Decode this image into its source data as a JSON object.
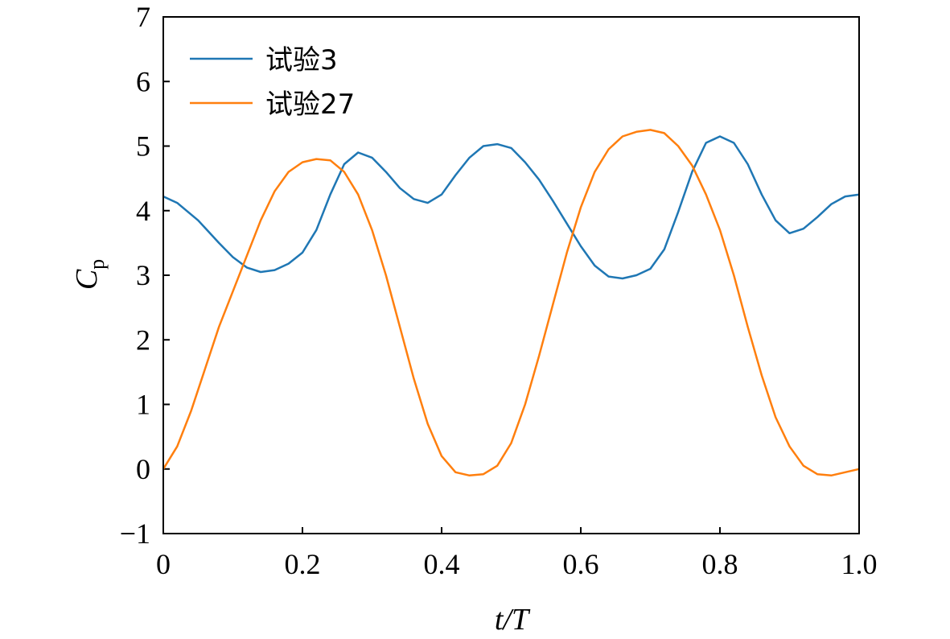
{
  "chart_data": {
    "type": "line",
    "xlabel": "t/T",
    "ylabel": "Cp",
    "ylabel_main": "C",
    "ylabel_sub": "p",
    "xlim": [
      0,
      1
    ],
    "ylim": [
      -1,
      7
    ],
    "xticks": [
      0,
      0.2,
      0.4,
      0.6,
      0.8,
      1.0
    ],
    "xtick_labels": [
      "0",
      "0.2",
      "0.4",
      "0.6",
      "0.8",
      "1.0"
    ],
    "yticks": [
      -1,
      0,
      1,
      2,
      3,
      4,
      5,
      6,
      7
    ],
    "ytick_labels": [
      "−1",
      "0",
      "1",
      "2",
      "3",
      "4",
      "5",
      "6",
      "7"
    ],
    "grid": false,
    "legend_position": "top-left",
    "series": [
      {
        "name": "试验3",
        "color": "#1f77b4",
        "x": [
          0,
          0.02,
          0.05,
          0.08,
          0.1,
          0.12,
          0.14,
          0.16,
          0.18,
          0.2,
          0.22,
          0.24,
          0.26,
          0.28,
          0.3,
          0.32,
          0.34,
          0.36,
          0.38,
          0.4,
          0.42,
          0.44,
          0.46,
          0.48,
          0.5,
          0.52,
          0.54,
          0.56,
          0.58,
          0.6,
          0.62,
          0.64,
          0.66,
          0.68,
          0.7,
          0.72,
          0.74,
          0.76,
          0.78,
          0.8,
          0.82,
          0.84,
          0.86,
          0.88,
          0.9,
          0.92,
          0.94,
          0.96,
          0.98,
          1.0
        ],
        "y": [
          4.22,
          4.12,
          3.85,
          3.5,
          3.28,
          3.12,
          3.05,
          3.08,
          3.18,
          3.35,
          3.7,
          4.25,
          4.72,
          4.9,
          4.82,
          4.6,
          4.35,
          4.18,
          4.12,
          4.25,
          4.55,
          4.82,
          5.0,
          5.03,
          4.97,
          4.75,
          4.48,
          4.15,
          3.8,
          3.45,
          3.15,
          2.98,
          2.95,
          3.0,
          3.1,
          3.4,
          3.98,
          4.6,
          5.05,
          5.15,
          5.05,
          4.72,
          4.25,
          3.85,
          3.65,
          3.72,
          3.9,
          4.1,
          4.22,
          4.25
        ]
      },
      {
        "name": "试验27",
        "color": "#ff7f0e",
        "x": [
          0,
          0.02,
          0.04,
          0.06,
          0.08,
          0.1,
          0.12,
          0.14,
          0.16,
          0.18,
          0.2,
          0.22,
          0.24,
          0.26,
          0.28,
          0.3,
          0.32,
          0.34,
          0.36,
          0.38,
          0.4,
          0.42,
          0.44,
          0.46,
          0.48,
          0.5,
          0.52,
          0.54,
          0.56,
          0.58,
          0.6,
          0.62,
          0.64,
          0.66,
          0.68,
          0.7,
          0.72,
          0.74,
          0.76,
          0.78,
          0.8,
          0.82,
          0.84,
          0.86,
          0.88,
          0.9,
          0.92,
          0.94,
          0.96,
          0.98,
          1.0
        ],
        "y": [
          0.0,
          0.35,
          0.9,
          1.55,
          2.2,
          2.75,
          3.3,
          3.85,
          4.3,
          4.6,
          4.75,
          4.8,
          4.78,
          4.6,
          4.25,
          3.7,
          3.0,
          2.2,
          1.4,
          0.7,
          0.2,
          -0.05,
          -0.1,
          -0.08,
          0.05,
          0.4,
          1.0,
          1.75,
          2.55,
          3.35,
          4.05,
          4.6,
          4.95,
          5.15,
          5.22,
          5.25,
          5.2,
          5.0,
          4.7,
          4.25,
          3.7,
          3.0,
          2.2,
          1.45,
          0.8,
          0.35,
          0.05,
          -0.08,
          -0.1,
          -0.05,
          0.0
        ]
      }
    ]
  }
}
